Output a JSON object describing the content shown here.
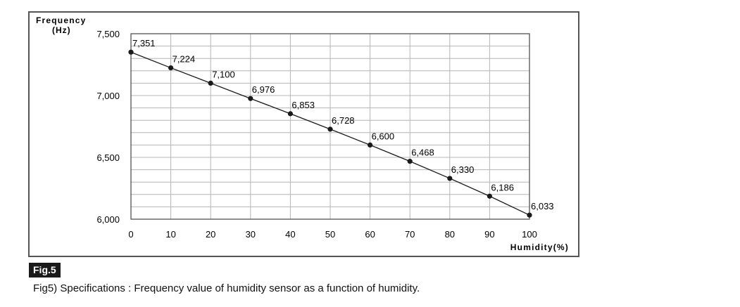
{
  "figure_label": "Fig.5",
  "caption": "Fig5) Specifications : Frequency value of humidity sensor as a function of humidity.",
  "chart_data": {
    "type": "line",
    "ylabel_line1": "Frequency",
    "ylabel_line2": "(Hz)",
    "xlabel": "Humidity(%)",
    "x": [
      0,
      10,
      20,
      30,
      40,
      50,
      60,
      70,
      80,
      90,
      100
    ],
    "values": [
      7351,
      7224,
      7100,
      6976,
      6853,
      6728,
      6600,
      6468,
      6330,
      6186,
      6033
    ],
    "data_labels": [
      "7,351",
      "7,224",
      "7,100",
      "6,976",
      "6,853",
      "6,728",
      "6,600",
      "6,468",
      "6,330",
      "6,186",
      "6,033"
    ],
    "xlim": [
      0,
      100
    ],
    "ylim": [
      6000,
      7500
    ],
    "x_ticks": [
      "0",
      "10",
      "20",
      "30",
      "40",
      "50",
      "60",
      "70",
      "80",
      "90",
      "100"
    ],
    "y_ticks": [
      {
        "value": 6000,
        "label": "6,000"
      },
      {
        "value": 6500,
        "label": "6,500"
      },
      {
        "value": 7000,
        "label": "7,000"
      },
      {
        "value": 7500,
        "label": "7,500"
      }
    ],
    "grid": true,
    "line_color": "#1a1a1a",
    "grid_color": "#b5b5b5"
  }
}
